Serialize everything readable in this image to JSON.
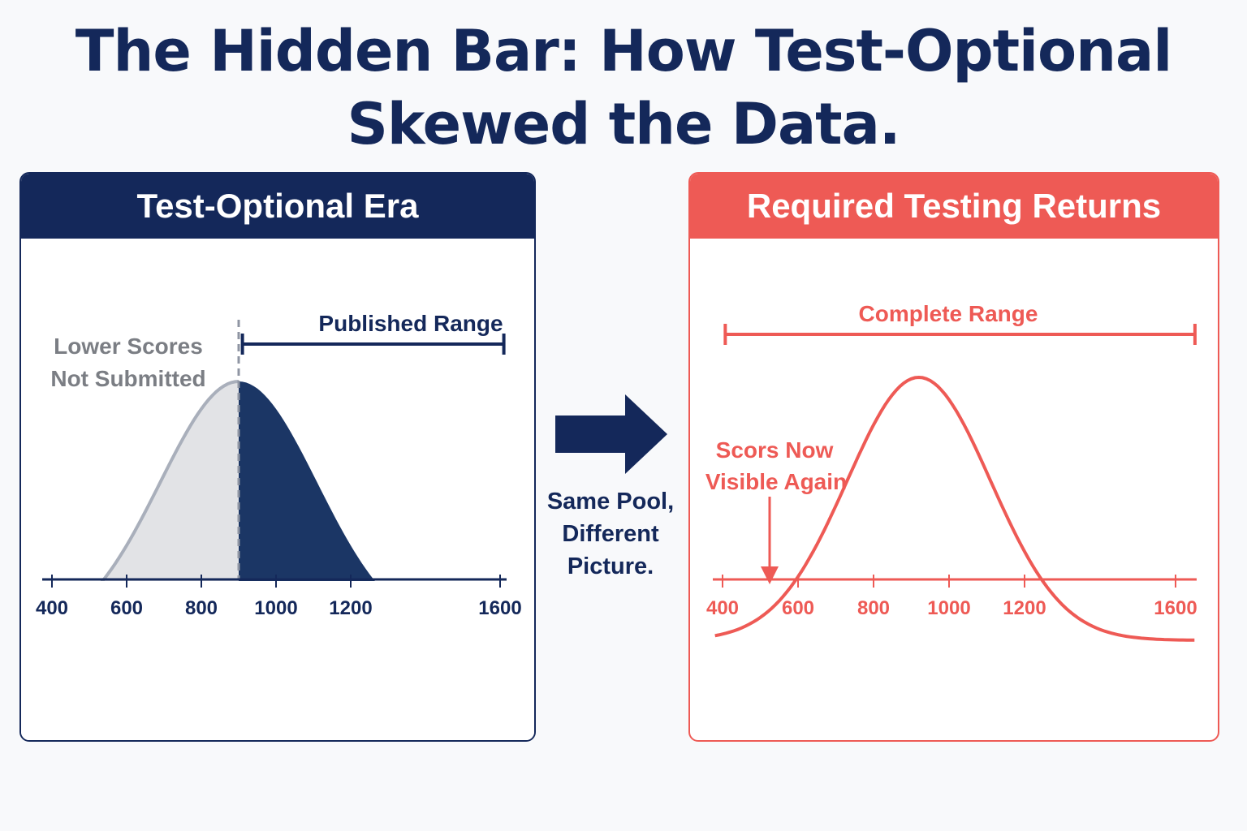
{
  "title": {
    "line1": "The Hidden Bar: How Test-Optional",
    "line2": "Skewed the Data."
  },
  "colors": {
    "navy": "#14285a",
    "navy_fill": "#1b3665",
    "coral": "#ee5a55",
    "gray_fill": "#e2e3e6",
    "gray_stroke": "#a9afbb",
    "gray_text": "#7b7e84"
  },
  "left_panel": {
    "header": "Test-Optional Era",
    "range_label": "Published Range",
    "hidden_label_line1": "Lower Scores",
    "hidden_label_line2": "Not Submitted",
    "cutoff": 900,
    "range_start": 910,
    "range_end": 1610
  },
  "right_panel": {
    "header": "Required Testing Returns",
    "range_label": "Complete Range",
    "callout_line1": "Scors Now",
    "callout_line2": "Visible Again",
    "range_start": 390,
    "range_end": 1660
  },
  "middle": {
    "arrow_icon": "right-arrow-icon",
    "caption_line1": "Same Pool,",
    "caption_line2": "Different",
    "caption_line3": "Picture."
  },
  "chart_data": [
    {
      "type": "area",
      "x_ticks": [
        "400",
        "600",
        "800",
        "1000",
        "1200",
        "1600"
      ],
      "xlim": [
        400,
        1600
      ],
      "distribution": {
        "shape": "normal",
        "peak": 900,
        "spread": 210
      },
      "regions": [
        {
          "label": "Lower Scores Not Submitted",
          "from": 400,
          "to": 900
        },
        {
          "label": "Published Range",
          "from": 900,
          "to": 1600
        }
      ]
    },
    {
      "type": "line",
      "x_ticks": [
        "400",
        "600",
        "800",
        "1000",
        "1200",
        "1600"
      ],
      "xlim": [
        400,
        1600
      ],
      "distribution": {
        "shape": "normal",
        "peak": 920,
        "spread": 190
      }
    }
  ]
}
